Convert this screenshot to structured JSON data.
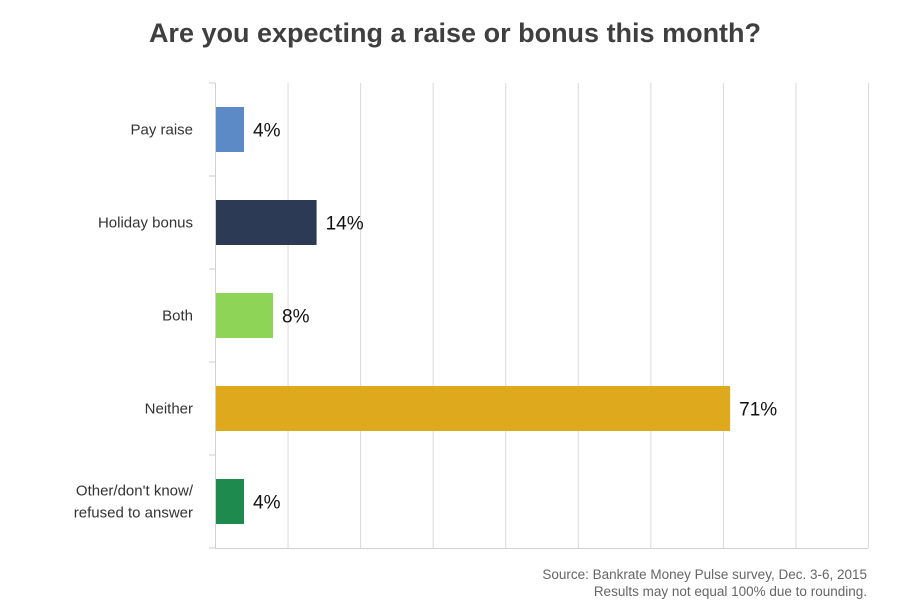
{
  "chart_data": {
    "type": "bar",
    "orientation": "horizontal",
    "title": "Are you expecting a raise or bonus this month?",
    "categories": [
      [
        "Pay raise"
      ],
      [
        "Holiday bonus"
      ],
      [
        "Both"
      ],
      [
        "Neither"
      ],
      [
        "Other/don't know/",
        "refused to answer"
      ]
    ],
    "values": [
      4,
      14,
      8,
      71,
      4
    ],
    "value_labels": [
      "4%",
      "14%",
      "8%",
      "71%",
      "4%"
    ],
    "colors": [
      "#5b8ac6",
      "#2c3a55",
      "#8ed557",
      "#dfa91e",
      "#1f8a4e"
    ],
    "xlim": [
      0,
      90
    ],
    "grid": true,
    "xlabel": "",
    "ylabel": ""
  },
  "source": {
    "line1": "Source: Bankrate Money Pulse survey, Dec. 3-6, 2015",
    "line2": "Results may not equal 100% due to rounding."
  }
}
